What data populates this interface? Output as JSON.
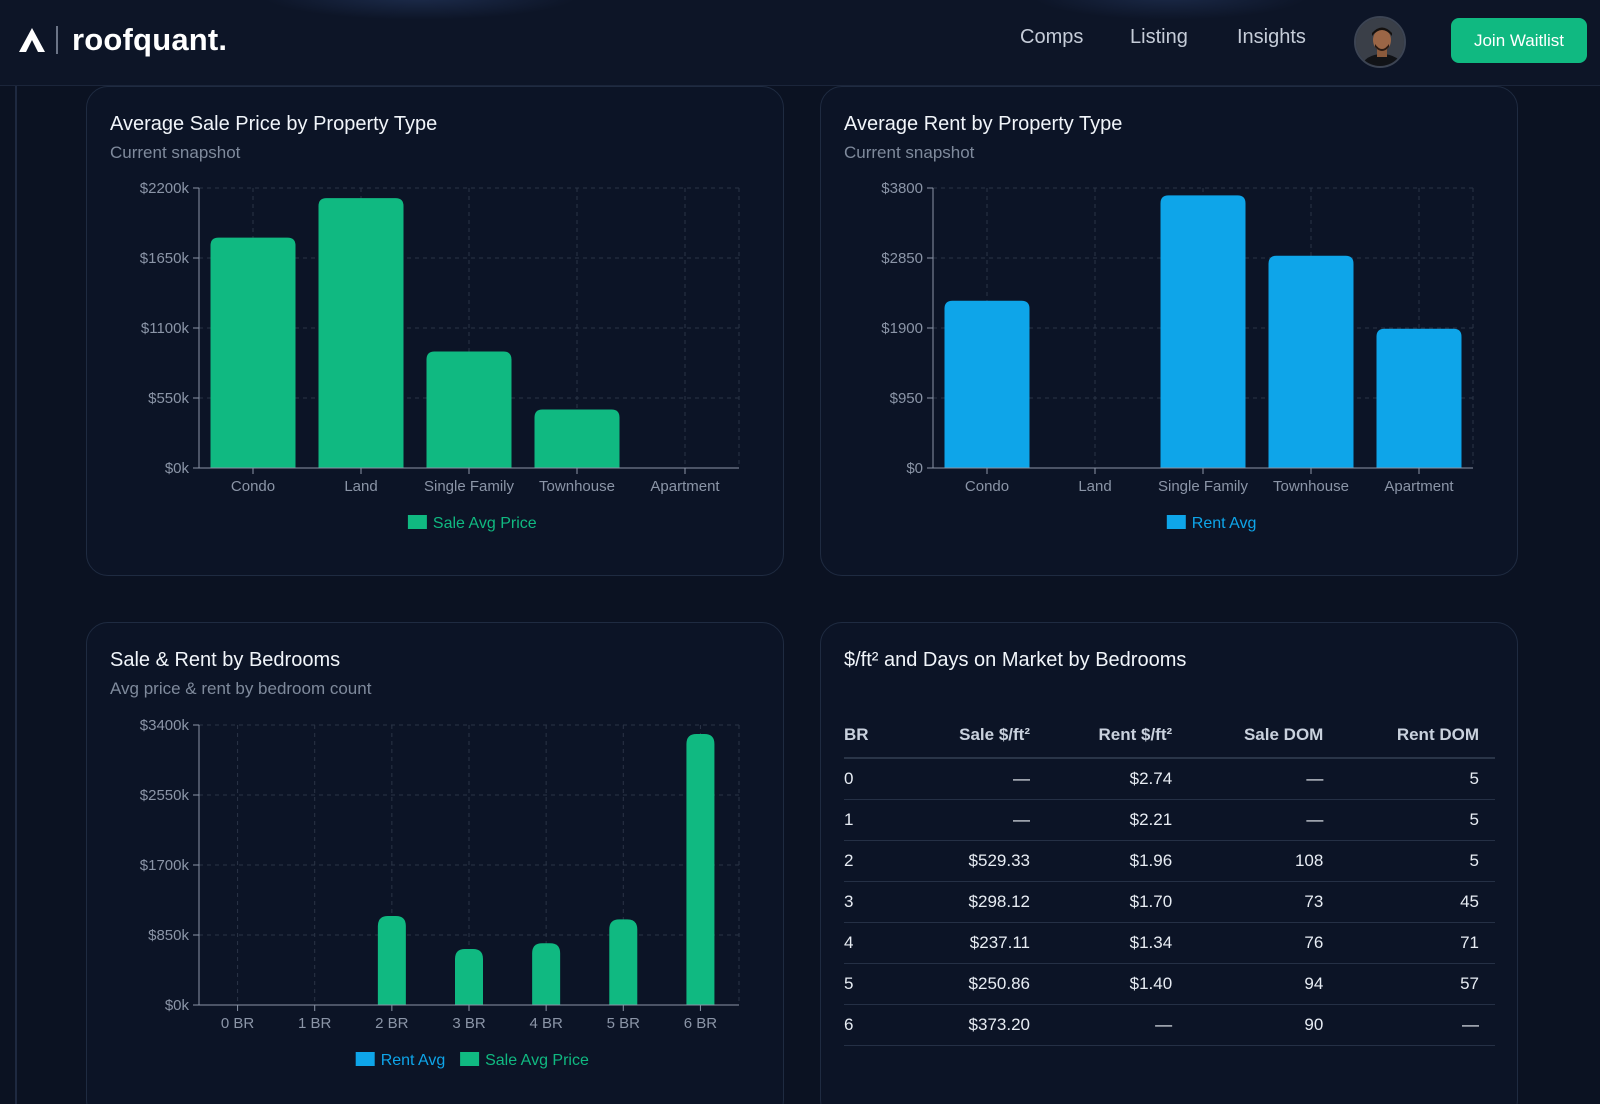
{
  "brand": {
    "name": "roofquant."
  },
  "nav": {
    "comps": "Comps",
    "listing": "Listing",
    "insights": "Insights",
    "join": "Join Waitlist"
  },
  "colors": {
    "green": "#10b981",
    "blue": "#0ea5e9",
    "background": "#0b1222",
    "card": "#0c1426"
  },
  "icons": {
    "logo": "roofquant-logo-icon",
    "avatar": "user-avatar"
  },
  "cards": {
    "sale_by_type": {
      "title": "Average Sale Price by Property Type",
      "subtitle": "Current snapshot"
    },
    "rent_by_type": {
      "title": "Average Rent by Property Type",
      "subtitle": "Current snapshot"
    },
    "by_bedrooms": {
      "title": "Sale & Rent by Bedrooms",
      "subtitle": "Avg price & rent by bedroom count"
    },
    "table": {
      "title": "$/ft² and Days on Market by Bedrooms",
      "headers": [
        "BR",
        "Sale $/ft²",
        "Rent $/ft²",
        "Sale DOM",
        "Rent DOM"
      ],
      "rows": [
        [
          "0",
          "—",
          "$2.74",
          "—",
          "5"
        ],
        [
          "1",
          "—",
          "$2.21",
          "—",
          "5"
        ],
        [
          "2",
          "$529.33",
          "$1.96",
          "108",
          "5"
        ],
        [
          "3",
          "$298.12",
          "$1.70",
          "73",
          "45"
        ],
        [
          "4",
          "$237.11",
          "$1.34",
          "76",
          "71"
        ],
        [
          "5",
          "$250.86",
          "$1.40",
          "94",
          "57"
        ],
        [
          "6",
          "$373.20",
          "—",
          "90",
          "—"
        ]
      ]
    }
  },
  "chart_data": [
    {
      "type": "bar",
      "title": "Average Sale Price by Property Type",
      "subtitle": "Current snapshot",
      "categories": [
        "Condo",
        "Land",
        "Single Family",
        "Townhouse",
        "Apartment"
      ],
      "yticks": [
        "$0k",
        "$550k",
        "$1100k",
        "$1650k",
        "$2200k"
      ],
      "ylim": [
        0,
        2200
      ],
      "series": [
        {
          "name": "Sale Avg Price",
          "color": "#10b981",
          "values": [
            1810,
            2120,
            915,
            460,
            0
          ]
        }
      ],
      "legend": "bottom-center",
      "grid": true
    },
    {
      "type": "bar",
      "title": "Average Rent by Property Type",
      "subtitle": "Current snapshot",
      "categories": [
        "Condo",
        "Land",
        "Single Family",
        "Townhouse",
        "Apartment"
      ],
      "yticks": [
        "$0",
        "$950",
        "$1900",
        "$2850",
        "$3800"
      ],
      "ylim": [
        0,
        3800
      ],
      "series": [
        {
          "name": "Rent Avg",
          "color": "#0ea5e9",
          "values": [
            2270,
            0,
            3700,
            2880,
            1890
          ]
        }
      ],
      "legend": "bottom-center",
      "grid": true
    },
    {
      "type": "bar",
      "title": "Sale & Rent by Bedrooms",
      "subtitle": "Avg price & rent by bedroom count",
      "categories": [
        "0 BR",
        "1 BR",
        "2 BR",
        "3 BR",
        "4 BR",
        "5 BR",
        "6 BR"
      ],
      "yticks": [
        "$0k",
        "$850k",
        "$1700k",
        "$2550k",
        "$3400k"
      ],
      "ylim": [
        0,
        3400
      ],
      "series": [
        {
          "name": "Rent Avg",
          "color": "#0ea5e9",
          "values": [
            5,
            5,
            5,
            5,
            5,
            5,
            5
          ]
        },
        {
          "name": "Sale Avg Price",
          "color": "#10b981",
          "values": [
            0,
            0,
            1080,
            680,
            750,
            1040,
            3290
          ]
        }
      ],
      "legend": "bottom-center",
      "grid": true
    }
  ]
}
